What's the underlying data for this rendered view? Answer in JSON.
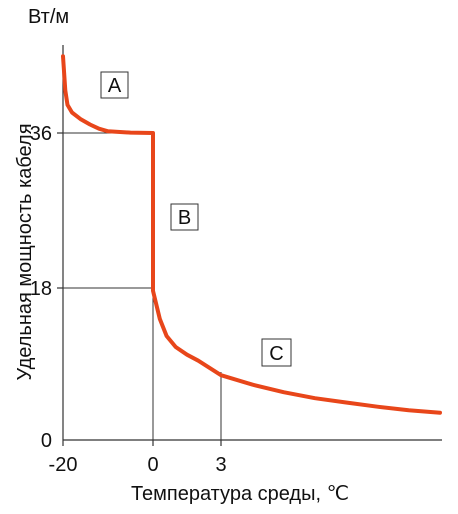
{
  "chart_data": {
    "type": "line",
    "ylabel": "Удельная мощность кабеля",
    "yunit": "Вт/м",
    "xlabel": "Температура среды, ℃",
    "x_ticks": [
      "-20",
      "0",
      "3"
    ],
    "y_ticks": [
      "0",
      "18",
      "36"
    ],
    "region_labels": [
      "A",
      "B",
      "C"
    ],
    "line_color": "#e8461a",
    "series": [
      {
        "points": [
          [
            -20,
            45
          ],
          [
            -19.5,
            41
          ],
          [
            -19,
            39.3
          ],
          [
            -18,
            38.4
          ],
          [
            -16,
            37.6
          ],
          [
            -14,
            37.0
          ],
          [
            -12,
            36.5
          ],
          [
            -10,
            36.2
          ],
          [
            -5,
            36.05
          ],
          [
            0,
            36
          ],
          [
            0,
            17.5
          ],
          [
            0.3,
            14.2
          ],
          [
            0.6,
            12.2
          ],
          [
            1,
            10.9
          ],
          [
            1.5,
            10.0
          ],
          [
            2,
            9.3
          ],
          [
            3,
            7.6
          ],
          [
            4,
            6.5
          ],
          [
            5,
            5.6
          ],
          [
            6,
            4.9
          ],
          [
            7,
            4.4
          ],
          [
            8,
            3.9
          ],
          [
            9,
            3.5
          ],
          [
            10,
            3.2
          ]
        ]
      }
    ],
    "guides": [
      {
        "x": 0,
        "y": 36
      },
      {
        "x": 0,
        "y": 18
      },
      {
        "x": 3,
        "y": 7.6
      }
    ]
  }
}
